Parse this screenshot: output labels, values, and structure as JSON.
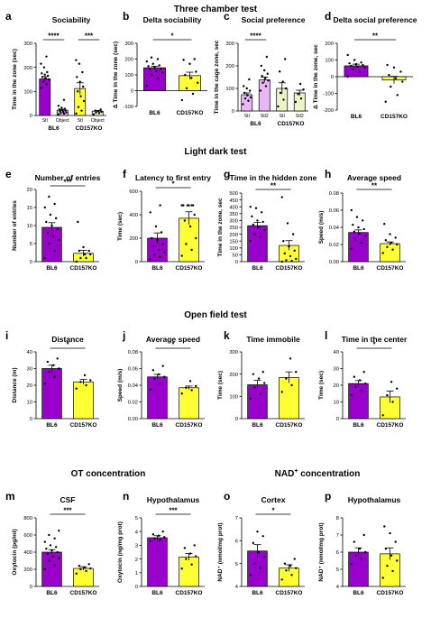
{
  "colors": {
    "bl6": "#9900cc",
    "bl6_light": "#e8b8f5",
    "ko": "#ffff33",
    "ko_light": "#eef5c4",
    "text": "#000000"
  },
  "sections": [
    "Three chamber test",
    "Light dark test",
    "Open field test"
  ],
  "section_headers": {
    "ot": "OT concentration",
    "nad_prefix": "NAD",
    "nad_sup": "+",
    "nad_suffix": " concentration"
  },
  "chart_data": [
    {
      "id": "a",
      "letter": "a",
      "type": "bar",
      "title": "Sociability",
      "ylabel": "Time in the zone (sec)",
      "ylim": [
        0,
        300
      ],
      "yticks": [
        "0",
        "100",
        "200",
        "300"
      ],
      "categories": [
        "Stl",
        "Object",
        "Stl",
        "Object"
      ],
      "groups": [
        "BL6",
        "CD157KO"
      ],
      "values": [
        152,
        22,
        112,
        18
      ],
      "errors": [
        10,
        4,
        24,
        3
      ],
      "colorkeys": [
        "bl6",
        "bl6_light",
        "ko",
        "ko_light"
      ],
      "points": [
        [
          115,
          130,
          140,
          150,
          155,
          160,
          165,
          170,
          175,
          180,
          200,
          215,
          245
        ],
        [
          5,
          8,
          10,
          12,
          15,
          18,
          20,
          22,
          25,
          28,
          32,
          40,
          65
        ],
        [
          8,
          20,
          35,
          60,
          80,
          100,
          120,
          140,
          160,
          180,
          215,
          230
        ],
        [
          5,
          10,
          12,
          15,
          18,
          20,
          25
        ]
      ],
      "sig": [
        {
          "from": 0,
          "to": 1,
          "text": "****"
        },
        {
          "from": 2,
          "to": 3,
          "text": "***"
        }
      ]
    },
    {
      "id": "b",
      "letter": "b",
      "type": "bar",
      "title": "Delta sociability",
      "ylabel": "Δ Time in the zone (sec)",
      "ylim": [
        -100,
        300
      ],
      "yticks": [
        "-100",
        "0",
        "100",
        "200",
        "300"
      ],
      "categories": [
        "BL6",
        "CD157KO"
      ],
      "values": [
        145,
        95
      ],
      "errors": [
        10,
        22
      ],
      "colorkeys": [
        "bl6",
        "ko"
      ],
      "points": [
        [
          30,
          80,
          100,
          115,
          125,
          135,
          140,
          150,
          155,
          160,
          170,
          185,
          200,
          210
        ],
        [
          -60,
          -20,
          15,
          50,
          80,
          100,
          120,
          170,
          195,
          200
        ]
      ],
      "sig": [
        {
          "from": 0,
          "to": 1,
          "text": "*"
        }
      ]
    },
    {
      "id": "c",
      "letter": "c",
      "type": "bar",
      "title": "Social preference",
      "ylabel": "Time in the cage zone, sec",
      "ylim": [
        0,
        300
      ],
      "yticks": [
        "0",
        "100",
        "200",
        "300"
      ],
      "categories": [
        "Stl",
        "Stl2",
        "Stl",
        "Stl2"
      ],
      "groups": [
        "BL6",
        "CD157KO"
      ],
      "values": [
        72,
        138,
        100,
        80
      ],
      "errors": [
        8,
        12,
        25,
        12
      ],
      "colorkeys": [
        "bl6_light",
        "bl6_light",
        "ko_light",
        "ko_light"
      ],
      "points": [
        [
          30,
          45,
          55,
          60,
          70,
          80,
          90,
          100,
          110,
          140
        ],
        [
          90,
          110,
          125,
          135,
          145,
          155,
          165,
          180,
          200,
          240
        ],
        [
          20,
          50,
          80,
          100,
          130,
          175,
          230
        ],
        [
          40,
          55,
          75,
          95,
          120
        ]
      ],
      "sig": [
        {
          "from": 0,
          "to": 1,
          "text": "****"
        }
      ]
    },
    {
      "id": "d",
      "letter": "d",
      "type": "bar",
      "title": "Delta social preference",
      "ylabel": "Δ Time in the zone, sec",
      "ylim": [
        -200,
        200
      ],
      "yticks": [
        "-200",
        "-100",
        "0",
        "100",
        "200"
      ],
      "categories": [
        "BL6",
        "CD157KO"
      ],
      "values": [
        65,
        -20
      ],
      "errors": [
        10,
        22
      ],
      "colorkeys": [
        "bl6",
        "ko"
      ],
      "points": [
        [
          0,
          30,
          45,
          55,
          60,
          65,
          70,
          75,
          80,
          85,
          100,
          130
        ],
        [
          -150,
          -110,
          -60,
          -30,
          -10,
          10,
          30,
          55,
          70
        ]
      ],
      "sig": [
        {
          "from": 0,
          "to": 1,
          "text": "**"
        }
      ]
    },
    {
      "id": "e",
      "letter": "e",
      "type": "bar",
      "title": "Number of entries",
      "ylabel": "Number of entries",
      "ylim": [
        0,
        20
      ],
      "yticks": [
        "0",
        "5",
        "10",
        "15",
        "20"
      ],
      "categories": [
        "BL6",
        "CD157KO"
      ],
      "values": [
        9.5,
        2.3
      ],
      "errors": [
        1.3,
        0.8
      ],
      "colorkeys": [
        "bl6",
        "ko"
      ],
      "points": [
        [
          1,
          3,
          5,
          6,
          7,
          8,
          9,
          10,
          11,
          12,
          13,
          15,
          16,
          18
        ],
        [
          0,
          1,
          1,
          2,
          2,
          3,
          3,
          4,
          11
        ]
      ],
      "sig": [
        {
          "from": 0,
          "to": 1,
          "text": "***"
        }
      ]
    },
    {
      "id": "f",
      "letter": "f",
      "type": "bar",
      "title": "Latency to first entry",
      "ylabel": "Time (sec)",
      "ylim": [
        0,
        600
      ],
      "yticks": [
        "0",
        "200",
        "400",
        "600"
      ],
      "categories": [
        "BL6",
        "CD157KO"
      ],
      "values": [
        200,
        370
      ],
      "errors": [
        45,
        55
      ],
      "colorkeys": [
        "bl6",
        "ko"
      ],
      "points": [
        [
          20,
          40,
          60,
          80,
          100,
          130,
          150,
          180,
          200,
          250,
          300,
          420,
          480
        ],
        [
          50,
          100,
          150,
          200,
          300,
          350,
          400,
          480,
          480,
          480,
          480,
          480,
          480
        ]
      ],
      "sig": [
        {
          "from": 0,
          "to": 1,
          "text": "*"
        }
      ]
    },
    {
      "id": "g",
      "letter": "g",
      "type": "bar",
      "title": "Time in the hidden zone",
      "ylabel": "Time in the zone, sec",
      "ylim": [
        0,
        500
      ],
      "yticks": [
        "0",
        "50",
        "100",
        "150",
        "200",
        "250",
        "300",
        "350",
        "400",
        "450",
        "500"
      ],
      "categories": [
        "BL6",
        "CD157KO"
      ],
      "values": [
        262,
        118
      ],
      "errors": [
        25,
        35
      ],
      "colorkeys": [
        "bl6",
        "ko"
      ],
      "points": [
        [
          150,
          180,
          200,
          230,
          250,
          270,
          290,
          300,
          330,
          360,
          390,
          400
        ],
        [
          0,
          5,
          10,
          20,
          40,
          60,
          80,
          110,
          150,
          200,
          280,
          470
        ]
      ],
      "sig": [
        {
          "from": 0,
          "to": 1,
          "text": "**"
        }
      ]
    },
    {
      "id": "h",
      "letter": "h",
      "type": "bar",
      "title": "Average speed",
      "ylabel": "Speed (m/s)",
      "ylim": [
        0,
        0.08
      ],
      "yticks": [
        "0.00",
        "0.02",
        "0.04",
        "0.06",
        "0.08"
      ],
      "categories": [
        "BL6",
        "CD157KO"
      ],
      "values": [
        0.034,
        0.021
      ],
      "errors": [
        0.003,
        0.002
      ],
      "colorkeys": [
        "bl6",
        "ko"
      ],
      "points": [
        [
          0.015,
          0.022,
          0.026,
          0.03,
          0.033,
          0.035,
          0.038,
          0.04,
          0.043,
          0.048,
          0.052,
          0.06
        ],
        [
          0.01,
          0.014,
          0.017,
          0.02,
          0.022,
          0.025,
          0.028,
          0.032,
          0.044
        ]
      ],
      "sig": [
        {
          "from": 0,
          "to": 1,
          "text": "**"
        }
      ]
    },
    {
      "id": "i",
      "letter": "i",
      "type": "bar",
      "title": "Distance",
      "ylabel": "Distance (m)",
      "ylim": [
        0,
        40
      ],
      "yticks": [
        "0",
        "10",
        "20",
        "30",
        "40"
      ],
      "categories": [
        "BL6",
        "CD157KO"
      ],
      "values": [
        30,
        22
      ],
      "errors": [
        2,
        1.5
      ],
      "colorkeys": [
        "bl6",
        "ko"
      ],
      "points": [
        [
          21,
          25,
          28,
          30,
          32,
          34,
          36
        ],
        [
          18,
          20,
          22,
          23,
          26
        ]
      ],
      "sig": [
        {
          "from": 0,
          "to": 1,
          "text": "*"
        }
      ]
    },
    {
      "id": "j",
      "letter": "j",
      "type": "bar",
      "title": "Average speed",
      "ylabel": "Speed (m/s)",
      "ylim": [
        0,
        0.08
      ],
      "yticks": [
        "0.00",
        "0.02",
        "0.04",
        "0.06",
        "0.08"
      ],
      "categories": [
        "BL6",
        "CD157KO"
      ],
      "values": [
        0.05,
        0.037
      ],
      "errors": [
        0.003,
        0.002
      ],
      "colorkeys": [
        "bl6",
        "ko"
      ],
      "points": [
        [
          0.035,
          0.042,
          0.048,
          0.05,
          0.053,
          0.058,
          0.063
        ],
        [
          0.03,
          0.034,
          0.037,
          0.039,
          0.045
        ]
      ],
      "sig": [
        {
          "from": 0,
          "to": 1,
          "text": "*"
        }
      ]
    },
    {
      "id": "k",
      "letter": "k",
      "type": "bar",
      "title": "Time immobile",
      "ylabel": "Time (sec)",
      "ylim": [
        0,
        300
      ],
      "yticks": [
        "0",
        "100",
        "200",
        "300"
      ],
      "categories": [
        "BL6",
        "CD157KO"
      ],
      "values": [
        152,
        185
      ],
      "errors": [
        20,
        25
      ],
      "colorkeys": [
        "bl6",
        "ko"
      ],
      "points": [
        [
          90,
          110,
          140,
          160,
          180,
          200,
          210
        ],
        [
          120,
          150,
          180,
          210,
          270
        ]
      ],
      "sig": []
    },
    {
      "id": "l",
      "letter": "l",
      "type": "bar",
      "title": "Time in the center",
      "ylabel": "Time (sec)",
      "ylim": [
        0,
        40
      ],
      "yticks": [
        "0",
        "10",
        "20",
        "30",
        "40"
      ],
      "categories": [
        "BL6",
        "CD157KO"
      ],
      "values": [
        21,
        13
      ],
      "errors": [
        1.8,
        3.5
      ],
      "colorkeys": [
        "bl6",
        "ko"
      ],
      "points": [
        [
          14,
          17,
          19,
          21,
          23,
          25,
          28
        ],
        [
          2,
          10,
          14,
          18,
          22
        ]
      ],
      "sig": [
        {
          "from": 0,
          "to": 1,
          "text": "*"
        }
      ]
    },
    {
      "id": "m",
      "letter": "m",
      "type": "bar",
      "title": "CSF",
      "ylabel": "Oxytocin (pg/ml)",
      "ylim": [
        0,
        800
      ],
      "yticks": [
        "0",
        "200",
        "400",
        "600",
        "800"
      ],
      "categories": [
        "BL6",
        "CD157KO"
      ],
      "values": [
        400,
        210
      ],
      "errors": [
        30,
        20
      ],
      "colorkeys": [
        "bl6",
        "ko"
      ],
      "points": [
        [
          200,
          250,
          300,
          330,
          350,
          380,
          400,
          420,
          440,
          460,
          480,
          520,
          560,
          600,
          650
        ],
        [
          150,
          180,
          200,
          210,
          220,
          240,
          260
        ]
      ],
      "sig": [
        {
          "from": 0,
          "to": 1,
          "text": "***"
        }
      ]
    },
    {
      "id": "n",
      "letter": "n",
      "type": "bar",
      "title": "Hypothalamus",
      "ylabel": "Oxytocin (ng/mg prot)",
      "ylim": [
        0,
        5
      ],
      "yticks": [
        "0",
        "1",
        "2",
        "3",
        "4",
        "5"
      ],
      "categories": [
        "BL6",
        "CD157KO"
      ],
      "values": [
        3.55,
        2.15
      ],
      "errors": [
        0.15,
        0.25
      ],
      "colorkeys": [
        "bl6",
        "ko"
      ],
      "points": [
        [
          3.3,
          3.4,
          3.5,
          3.6,
          3.7,
          3.8,
          4.0
        ],
        [
          1.3,
          1.6,
          2.0,
          2.2,
          2.4,
          2.8,
          3.0
        ]
      ],
      "sig": [
        {
          "from": 0,
          "to": 1,
          "text": "***"
        }
      ]
    },
    {
      "id": "o",
      "letter": "o",
      "type": "bar",
      "title": "Cortex",
      "ylabel": "NAD⁺ (nmol/mg prot)",
      "ylim": [
        4,
        7
      ],
      "yticks": [
        "4",
        "5",
        "6",
        "7"
      ],
      "categories": [
        "BL6",
        "CD157KO"
      ],
      "values": [
        5.55,
        4.8
      ],
      "errors": [
        0.28,
        0.15
      ],
      "colorkeys": [
        "bl6",
        "ko"
      ],
      "points": [
        [
          4.5,
          4.8,
          5.0,
          5.3,
          5.5,
          5.9,
          6.2,
          6.4
        ],
        [
          4.3,
          4.5,
          4.7,
          4.8,
          4.9,
          5.0,
          5.2
        ]
      ],
      "sig": [
        {
          "from": 0,
          "to": 1,
          "text": "*"
        }
      ]
    },
    {
      "id": "p",
      "letter": "p",
      "type": "bar",
      "title": "Hypothalamus",
      "ylabel": "NAD⁺ (nmol/mg prot)",
      "ylim": [
        4,
        8
      ],
      "yticks": [
        "4",
        "5",
        "6",
        "7",
        "8"
      ],
      "categories": [
        "BL6",
        "CD157KO"
      ],
      "values": [
        6.0,
        5.9
      ],
      "errors": [
        0.25,
        0.35
      ],
      "colorkeys": [
        "bl6",
        "ko"
      ],
      "points": [
        [
          5.3,
          5.6,
          5.8,
          6.0,
          6.2,
          6.6,
          7.0
        ],
        [
          4.5,
          4.9,
          5.2,
          5.5,
          5.8,
          6.2,
          6.6,
          7.1,
          7.5
        ]
      ],
      "sig": []
    }
  ]
}
